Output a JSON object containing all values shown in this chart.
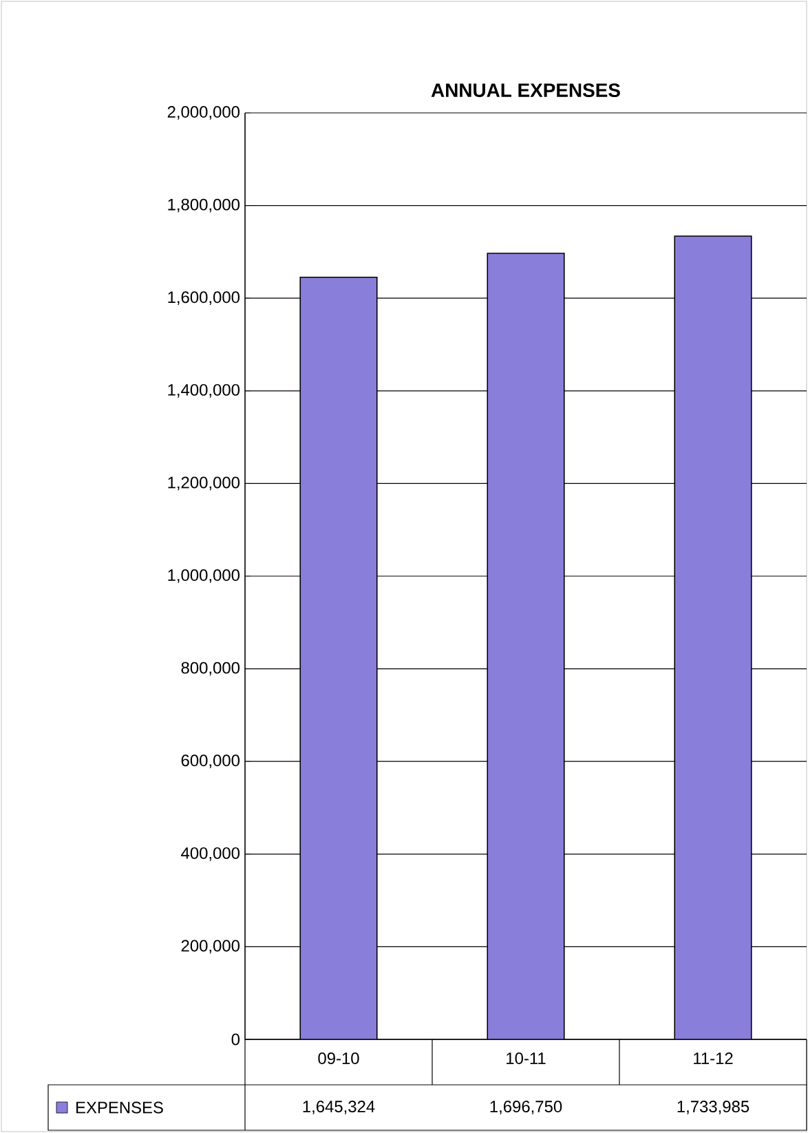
{
  "chart_data": {
    "type": "bar",
    "title": "ANNUAL EXPENSES",
    "categories": [
      "09-10",
      "10-11",
      "11-12"
    ],
    "series": [
      {
        "name": "EXPENSES",
        "color": "#8a7edb",
        "values": [
          1645324,
          1696750,
          1733985
        ],
        "value_labels": [
          "1,645,324",
          "1,696,750",
          "1,733,985"
        ]
      }
    ],
    "ylim": [
      0,
      2000000
    ],
    "yticks": [
      {
        "value": 0,
        "label": "0"
      },
      {
        "value": 200000,
        "label": "200,000"
      },
      {
        "value": 400000,
        "label": "400,000"
      },
      {
        "value": 600000,
        "label": "600,000"
      },
      {
        "value": 800000,
        "label": "800,000"
      },
      {
        "value": 1000000,
        "label": "1,000,000"
      },
      {
        "value": 1200000,
        "label": "1,200,000"
      },
      {
        "value": 1400000,
        "label": "1,400,000"
      },
      {
        "value": 1600000,
        "label": "1,600,000"
      },
      {
        "value": 1800000,
        "label": "1,800,000"
      },
      {
        "value": 2000000,
        "label": "2,000,000"
      }
    ],
    "grid": "y"
  }
}
